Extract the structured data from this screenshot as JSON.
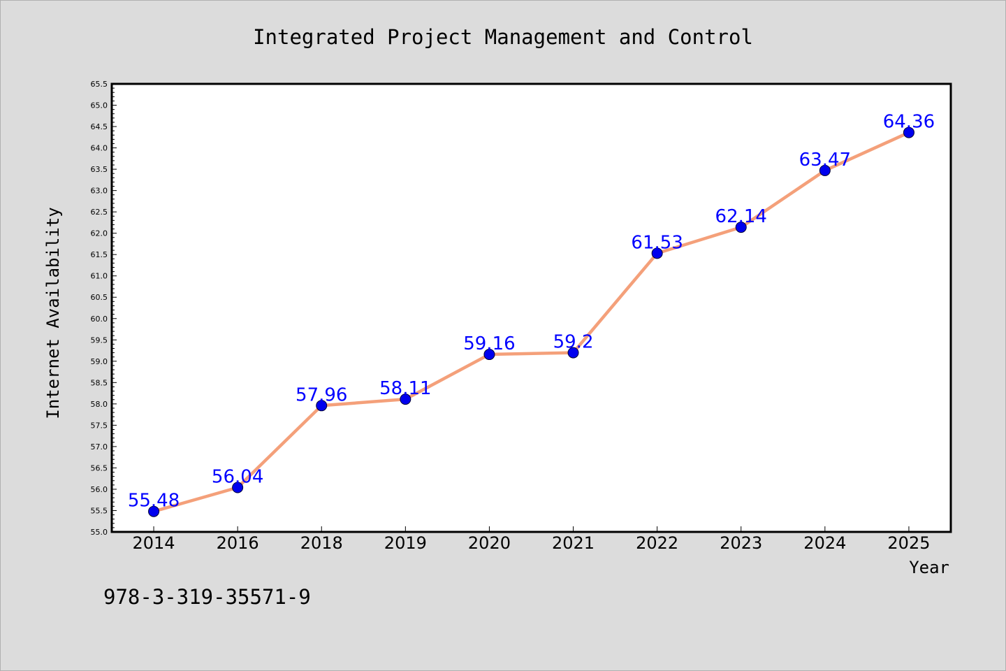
{
  "chart_data": {
    "type": "line",
    "title": "Integrated Project Management and Control",
    "xlabel": "Year",
    "ylabel": "Internet Availability",
    "categories": [
      "2014",
      "2016",
      "2018",
      "2019",
      "2020",
      "2021",
      "2022",
      "2023",
      "2024",
      "2025"
    ],
    "series": [
      {
        "values": [
          55.48,
          56.04,
          57.96,
          58.11,
          59.16,
          59.2,
          61.53,
          62.14,
          63.47,
          64.36
        ],
        "data_labels": [
          "55.48",
          "56.04",
          "57.96",
          "58.11",
          "59.16",
          "59.2",
          "61.53",
          "62.14",
          "63.47",
          "64.36"
        ]
      }
    ],
    "ylim": [
      55.0,
      65.5
    ],
    "yticks": [
      "55.0",
      "55.5",
      "56.0",
      "56.5",
      "57.0",
      "57.5",
      "58.0",
      "58.5",
      "59.0",
      "59.5",
      "60.0",
      "60.5",
      "61.0",
      "61.5",
      "62.0",
      "62.5",
      "63.0",
      "63.5",
      "64.0",
      "64.5",
      "65.0",
      "65.5"
    ],
    "grid": false,
    "legend": "none",
    "colors": {
      "line": "#f4a07a",
      "marker": "#0000ee",
      "data_label": "#0000ff",
      "background": "#dcdcdc",
      "plot_area": "#ffffff"
    }
  },
  "footnote": "978-3-319-35571-9"
}
